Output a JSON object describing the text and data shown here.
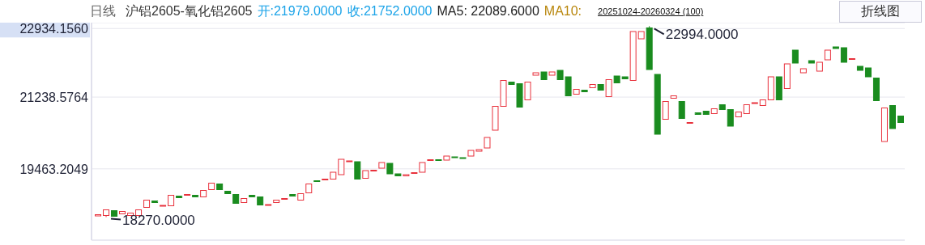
{
  "chart_data": {
    "type": "candlestick",
    "title": "日线",
    "subtitle": "沪铝2605-氧化铝2605",
    "annotations": [
      "开:21979.0000",
      "收:21752.0000",
      "MA5: 22089.6000",
      "MA10:",
      "20251024-20260324 (100)",
      "折线图",
      "22994.0000",
      "18270.0000"
    ],
    "categories": [
      null,
      null,
      null,
      null,
      null,
      null,
      null,
      null,
      null,
      null,
      null,
      null,
      null,
      null,
      null,
      null,
      null,
      null,
      null,
      null,
      null,
      null,
      null,
      null,
      null,
      null,
      null,
      null,
      null,
      null,
      null,
      null,
      null,
      null,
      null,
      null,
      null,
      null,
      null,
      null,
      null,
      null,
      null,
      null,
      null,
      null,
      null,
      null,
      null,
      null,
      null,
      null,
      null,
      null,
      null,
      null,
      null,
      null,
      null,
      null,
      null,
      null,
      null,
      null,
      null,
      null,
      null,
      null,
      null,
      null,
      null,
      null,
      null,
      null,
      null,
      null,
      null,
      null,
      null,
      null,
      null,
      null,
      null,
      null,
      null,
      null,
      null,
      null,
      null,
      null,
      null,
      null,
      null,
      null,
      null,
      null,
      null,
      null,
      null,
      null
    ],
    "ohlc": [
      [
        18300,
        18330,
        18300,
        18330
      ],
      [
        18310,
        18450,
        18270,
        18450
      ],
      [
        18430,
        18430,
        18290,
        18290
      ],
      [
        18350,
        18410,
        18350,
        18410
      ],
      [
        18310,
        18370,
        18310,
        18370
      ],
      [
        18310,
        18450,
        18310,
        18450
      ],
      [
        18510,
        18690,
        18510,
        18690
      ],
      [
        18670,
        18670,
        18630,
        18630
      ],
      [
        18550,
        18560,
        18550,
        18560
      ],
      [
        18550,
        18810,
        18550,
        18810
      ],
      [
        18790,
        18790,
        18750,
        18750
      ],
      [
        18810,
        18830,
        18810,
        18830
      ],
      [
        18810,
        18810,
        18770,
        18770
      ],
      [
        18770,
        18930,
        18770,
        18930
      ],
      [
        18950,
        19110,
        18950,
        19110
      ],
      [
        19090,
        19090,
        18950,
        18950
      ],
      [
        18910,
        18910,
        18850,
        18850
      ],
      [
        18830,
        18830,
        18610,
        18610
      ],
      [
        18630,
        18730,
        18630,
        18730
      ],
      [
        18810,
        18810,
        18770,
        18770
      ],
      [
        18770,
        18770,
        18570,
        18570
      ],
      [
        18570,
        18580,
        18570,
        18580
      ],
      [
        18630,
        18690,
        18630,
        18690
      ],
      [
        18710,
        18730,
        18710,
        18730
      ],
      [
        18830,
        18830,
        18790,
        18790
      ],
      [
        18690,
        18850,
        18690,
        18850
      ],
      [
        18870,
        19090,
        18870,
        19090
      ],
      [
        19170,
        19170,
        19160,
        19160
      ],
      [
        19190,
        19210,
        19190,
        19210
      ],
      [
        19210,
        19380,
        19210,
        19380
      ],
      [
        19320,
        19700,
        19320,
        19700
      ],
      [
        19650,
        19660,
        19650,
        19660
      ],
      [
        19640,
        19640,
        19210,
        19210
      ],
      [
        19230,
        19420,
        19230,
        19420
      ],
      [
        19420,
        19430,
        19420,
        19430
      ],
      [
        19480,
        19620,
        19480,
        19620
      ],
      [
        19600,
        19600,
        19340,
        19340
      ],
      [
        19340,
        19340,
        19290,
        19290
      ],
      [
        19290,
        19320,
        19290,
        19320
      ],
      [
        19360,
        19370,
        19360,
        19370
      ],
      [
        19380,
        19620,
        19380,
        19620
      ],
      [
        19680,
        19690,
        19680,
        19690
      ],
      [
        19690,
        19690,
        19680,
        19680
      ],
      [
        19680,
        19780,
        19680,
        19780
      ],
      [
        19760,
        19760,
        19750,
        19750
      ],
      [
        19740,
        19740,
        19730,
        19730
      ],
      [
        19780,
        19920,
        19780,
        19920
      ],
      [
        19900,
        19940,
        19900,
        19940
      ],
      [
        19980,
        20240,
        19980,
        20240
      ],
      [
        20420,
        21010,
        20420,
        21010
      ],
      [
        21010,
        21650,
        21010,
        21650
      ],
      [
        21610,
        21610,
        21550,
        21550
      ],
      [
        21570,
        21570,
        20990,
        20990
      ],
      [
        21170,
        21610,
        21170,
        21610
      ],
      [
        21780,
        21840,
        21780,
        21840
      ],
      [
        21860,
        21860,
        21670,
        21670
      ],
      [
        21780,
        21860,
        21780,
        21860
      ],
      [
        21900,
        21900,
        21670,
        21670
      ],
      [
        21740,
        21740,
        21270,
        21270
      ],
      [
        21310,
        21430,
        21310,
        21430
      ],
      [
        21410,
        21410,
        21370,
        21370
      ],
      [
        21470,
        21550,
        21470,
        21550
      ],
      [
        21550,
        21550,
        21410,
        21410
      ],
      [
        21250,
        21670,
        21250,
        21670
      ],
      [
        21760,
        21760,
        21590,
        21590
      ],
      [
        21740,
        21740,
        21690,
        21690
      ],
      [
        21650,
        22860,
        21650,
        22860
      ],
      [
        22680,
        22860,
        22680,
        22860
      ],
      [
        22950,
        22994,
        21920,
        21920
      ],
      [
        21800,
        21800,
        20320,
        20320
      ],
      [
        20690,
        21130,
        20690,
        21130
      ],
      [
        21210,
        21270,
        21210,
        21270
      ],
      [
        21130,
        21130,
        20710,
        20710
      ],
      [
        20600,
        20610,
        20600,
        20610
      ],
      [
        20850,
        20850,
        20810,
        20810
      ],
      [
        20890,
        20890,
        20810,
        20810
      ],
      [
        20830,
        20950,
        20830,
        20950
      ],
      [
        21050,
        21050,
        20930,
        20930
      ],
      [
        20930,
        20930,
        20520,
        20520
      ],
      [
        20750,
        20870,
        20750,
        20870
      ],
      [
        20830,
        21050,
        20830,
        21050
      ],
      [
        21090,
        21100,
        21090,
        21100
      ],
      [
        21030,
        21170,
        21030,
        21170
      ],
      [
        21170,
        21740,
        21170,
        21740
      ],
      [
        21740,
        21740,
        21170,
        21170
      ],
      [
        21450,
        22060,
        21450,
        22060
      ],
      [
        22400,
        22400,
        22080,
        22080
      ],
      [
        21840,
        21940,
        21840,
        21940
      ],
      [
        22140,
        22140,
        22080,
        22080
      ],
      [
        21880,
        22100,
        21880,
        22100
      ],
      [
        22160,
        22400,
        22160,
        22400
      ],
      [
        22480,
        22480,
        22440,
        22440
      ],
      [
        22460,
        22460,
        22100,
        22100
      ],
      [
        22180,
        22190,
        22180,
        22190
      ],
      [
        22000,
        22000,
        21900,
        21900
      ],
      [
        21960,
        21960,
        21740,
        21740
      ],
      [
        21710,
        21710,
        21150,
        21150
      ],
      [
        20140,
        20970,
        20140,
        20970
      ],
      [
        21030,
        21030,
        20460,
        20460
      ],
      [
        20770,
        20770,
        20610,
        20610
      ]
    ],
    "ylim": [
      17700,
      23080
    ],
    "yticks": [
      {
        "value": 19463.2049,
        "label": "19463.2049"
      },
      {
        "value": 21238.5764,
        "label": "21238.5764"
      },
      {
        "value": 22934.156,
        "label": "22934.1560"
      }
    ],
    "grid": "y",
    "tick_labels": "y"
  }
}
